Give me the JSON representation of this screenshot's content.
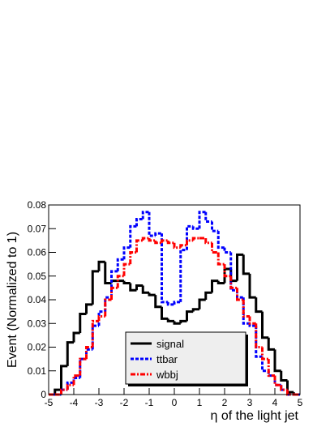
{
  "chart_data": {
    "type": "histogram",
    "xlabel": "η of the light jet",
    "ylabel": "Event (Normalized to 1)",
    "bins": [
      -5,
      -4.75,
      -4.5,
      -4.25,
      -4,
      -3.75,
      -3.5,
      -3.25,
      -3,
      -2.75,
      -2.5,
      -2.25,
      -2,
      -1.75,
      -1.5,
      -1.25,
      -1,
      -0.75,
      -0.5,
      -0.25,
      0,
      0.25,
      0.5,
      0.75,
      1,
      1.25,
      1.5,
      1.75,
      2,
      2.25,
      2.5,
      2.75,
      3,
      3.25,
      3.5,
      3.75,
      4,
      4.25,
      4.5,
      4.75,
      5
    ],
    "series": [
      {
        "name": "signal",
        "color": "#000000",
        "dash": "solid",
        "values": [
          0,
          0.002,
          0.012,
          0.022,
          0.026,
          0.034,
          0.038,
          0.052,
          0.056,
          0.047,
          0.048,
          0.048,
          0.047,
          0.044,
          0.046,
          0.043,
          0.042,
          0.037,
          0.032,
          0.031,
          0.03,
          0.031,
          0.035,
          0.036,
          0.04,
          0.043,
          0.048,
          0.047,
          0.053,
          0.048,
          0.059,
          0.051,
          0.041,
          0.035,
          0.024,
          0.019,
          0.01,
          0.006,
          0.001,
          0
        ]
      },
      {
        "name": "ttbar",
        "color": "#0000ff",
        "dash": "dash",
        "values": [
          0,
          0,
          0.002,
          0.005,
          0.007,
          0.015,
          0.019,
          0.029,
          0.035,
          0.041,
          0.052,
          0.057,
          0.062,
          0.071,
          0.074,
          0.077,
          0.067,
          0.068,
          0.039,
          0.038,
          0.039,
          0.061,
          0.071,
          0.07,
          0.077,
          0.073,
          0.069,
          0.062,
          0.06,
          0.044,
          0.041,
          0.03,
          0.029,
          0.016,
          0.01,
          0.008,
          0.004,
          0.002,
          0,
          0
        ]
      },
      {
        "name": "wbbj",
        "color": "#ff0000",
        "dash": "dashdot",
        "values": [
          0,
          0,
          0.002,
          0.004,
          0.008,
          0.015,
          0.02,
          0.031,
          0.033,
          0.04,
          0.045,
          0.05,
          0.055,
          0.06,
          0.065,
          0.066,
          0.065,
          0.064,
          0.065,
          0.064,
          0.062,
          0.063,
          0.065,
          0.066,
          0.066,
          0.064,
          0.06,
          0.055,
          0.05,
          0.045,
          0.04,
          0.033,
          0.03,
          0.02,
          0.015,
          0.008,
          0.004,
          0.002,
          0,
          0
        ]
      }
    ],
    "xlim": [
      -5,
      5
    ],
    "xticks": [
      -5,
      -4,
      -3,
      -2,
      -1,
      0,
      1,
      2,
      3,
      4,
      5
    ],
    "ylim": [
      0,
      0.08
    ],
    "yticks": [
      0,
      0.01,
      0.02,
      0.03,
      0.04,
      0.05,
      0.06,
      0.07,
      0.08
    ],
    "grid": false,
    "legend": "lower center"
  }
}
